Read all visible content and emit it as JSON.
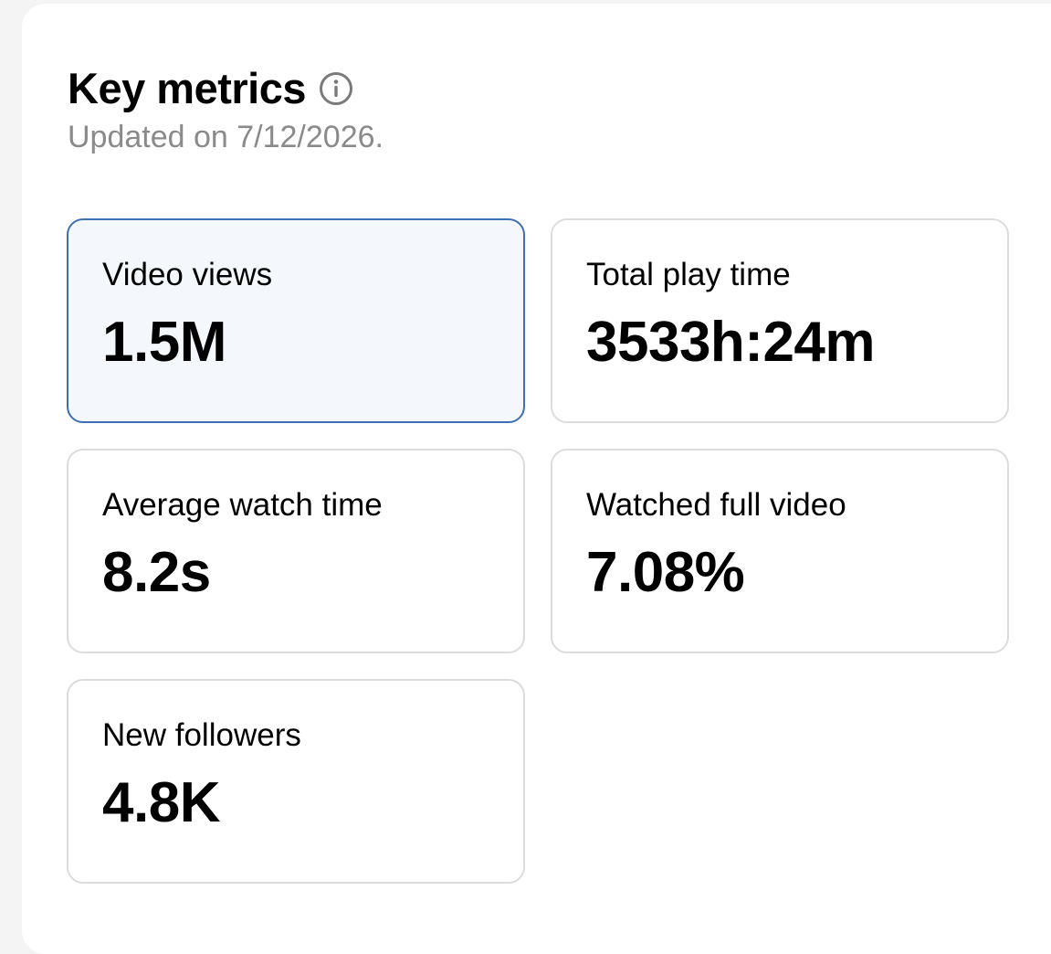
{
  "header": {
    "title": "Key metrics",
    "info_icon": "info-circle-icon",
    "subtitle": "Updated on 7/12/2026."
  },
  "metrics": [
    {
      "label": "Video views",
      "value": "1.5M",
      "selected": true
    },
    {
      "label": "Total play time",
      "value": "3533h:24m",
      "selected": false
    },
    {
      "label": "Average watch time",
      "value": "8.2s",
      "selected": false
    },
    {
      "label": "Watched full video",
      "value": "7.08%",
      "selected": false
    },
    {
      "label": "New followers",
      "value": "4.8K",
      "selected": false
    }
  ],
  "colors": {
    "selected_border": "#3d6fb5",
    "selected_background": "#f4f8fd",
    "card_border": "#dcdcdc",
    "subtitle_text": "#8a8a8a"
  }
}
